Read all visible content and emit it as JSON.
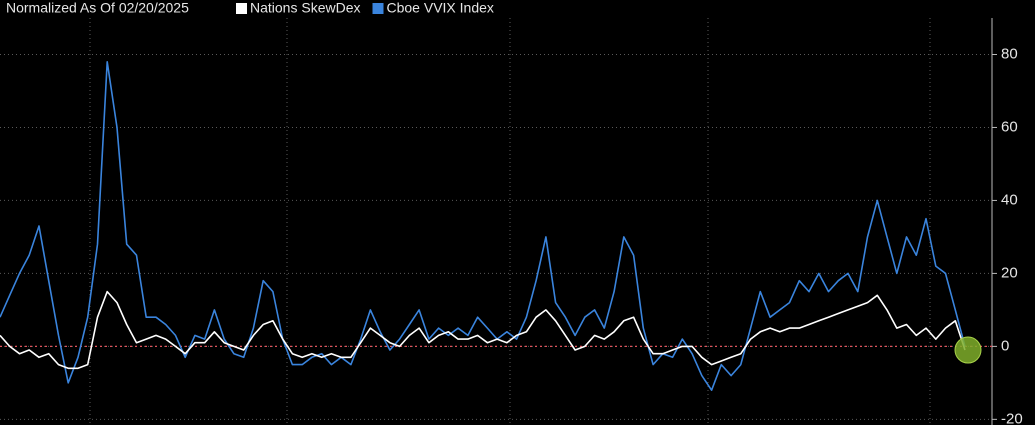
{
  "chart_data": {
    "type": "line",
    "subtitle": "Normalized As Of 02/20/2025",
    "series": [
      {
        "name": "Nations SkewDex",
        "color": "#ffffff",
        "values": [
          3,
          0,
          -2,
          -1,
          -3,
          -2,
          -5,
          -6,
          -6,
          -5,
          8,
          15,
          12,
          6,
          1,
          2,
          3,
          2,
          0,
          -2,
          1,
          1,
          4,
          1,
          0,
          -1,
          3,
          6,
          7,
          2,
          -2,
          -3,
          -2,
          -3,
          -2,
          -3,
          -3,
          1,
          5,
          3,
          1,
          0,
          3,
          5,
          1,
          3,
          4,
          2,
          2,
          3,
          1,
          2,
          1,
          3,
          4,
          8,
          10,
          7,
          3,
          -1,
          0,
          3,
          2,
          4,
          7,
          8,
          2,
          -2,
          -2,
          -1,
          0,
          0,
          -3,
          -5,
          -4,
          -3,
          -2,
          2,
          4,
          5,
          4,
          5,
          5,
          6,
          7,
          8,
          9,
          10,
          11,
          12,
          14,
          10,
          5,
          6,
          3,
          5,
          2,
          5,
          7,
          -1
        ]
      },
      {
        "name": "Cboe VVIX Index",
        "color": "#3a84dd",
        "values": [
          8,
          14,
          20,
          25,
          33,
          18,
          3,
          -10,
          -3,
          8,
          28,
          78,
          60,
          28,
          25,
          8,
          8,
          6,
          3,
          -3,
          3,
          2,
          10,
          2,
          -2,
          -3,
          5,
          18,
          15,
          2,
          -5,
          -5,
          -3,
          -2,
          -5,
          -3,
          -5,
          2,
          10,
          4,
          -1,
          2,
          6,
          10,
          2,
          5,
          3,
          5,
          3,
          8,
          5,
          2,
          4,
          2,
          8,
          18,
          30,
          12,
          8,
          3,
          8,
          10,
          5,
          15,
          30,
          25,
          5,
          -5,
          -2,
          -3,
          2,
          -2,
          -8,
          -12,
          -5,
          -8,
          -5,
          5,
          15,
          8,
          10,
          12,
          18,
          15,
          20,
          15,
          18,
          20,
          15,
          30,
          40,
          30,
          20,
          30,
          25,
          35,
          22,
          20,
          10,
          0
        ]
      }
    ],
    "ylim": [
      -21,
      90
    ],
    "yticks": [
      -20,
      0,
      20,
      40,
      60,
      80
    ],
    "grid": true
  }
}
